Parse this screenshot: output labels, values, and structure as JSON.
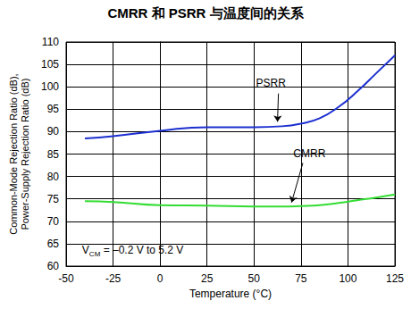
{
  "chart_data": {
    "type": "line",
    "title": "CMRR 和 PSRR 与温度间的关系",
    "x_label": "Temperature (°C)",
    "y_label": "Common-Mode Rejection Ratio (dB),\nPower-Supply Rejection Ratio (dB)",
    "x": [
      -40,
      -25,
      0,
      25,
      50,
      65,
      75,
      85,
      95,
      105,
      115,
      125
    ],
    "series": [
      {
        "name": "PSRR",
        "color": "#1c2fd0",
        "values": [
          88.5,
          89.0,
          90.2,
          91.0,
          91.0,
          91.2,
          91.8,
          93.0,
          95.5,
          99.0,
          103.0,
          107.0
        ]
      },
      {
        "name": "CMRR",
        "color": "#33dd33",
        "values": [
          74.5,
          74.3,
          73.6,
          73.5,
          73.3,
          73.3,
          73.4,
          73.6,
          74.1,
          74.7,
          75.3,
          76.0
        ]
      }
    ],
    "xlim": [
      -50,
      125
    ],
    "xticks": [
      -50,
      -25,
      0,
      25,
      50,
      75,
      100,
      125
    ],
    "ylim": [
      60,
      110
    ],
    "yticks": [
      60,
      65,
      70,
      75,
      80,
      85,
      90,
      95,
      100,
      105,
      110
    ],
    "grid": true,
    "annotations": [
      {
        "text": "PSRR",
        "x": 59,
        "y": 100.8,
        "arrow": [
          [
            63,
            98.5
          ],
          [
            62.5,
            92.2
          ]
        ]
      },
      {
        "text": "CMRR",
        "x": 79.5,
        "y": 85.1,
        "arrow": [
          [
            76,
            83.0
          ],
          [
            70,
            74.2
          ]
        ]
      },
      {
        "text": "VCM = –0.2 V to 5.2 V",
        "subscript": "CM",
        "x": -41.5,
        "y": 63
      }
    ]
  }
}
